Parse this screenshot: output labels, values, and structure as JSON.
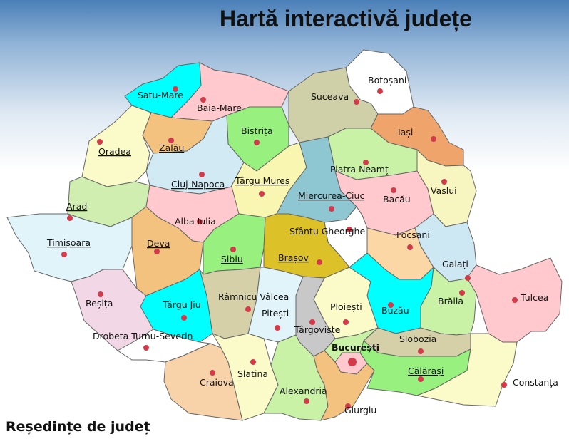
{
  "title": "Hartă interactivă județe",
  "legend": "Reședințe de județ",
  "colors": {
    "water": "#4a7fb8",
    "seat_dot": "#d33a4a"
  },
  "counties": [
    {
      "id": "satu-mare",
      "label": "Satu-Mare",
      "color": "#00ffff",
      "linked": false
    },
    {
      "id": "maramures",
      "label": "Baia-Mare",
      "color": "#ffc9cd",
      "linked": false
    },
    {
      "id": "botosani",
      "label": "Botoșani",
      "color": "#ffffff",
      "linked": false
    },
    {
      "id": "suceava",
      "label": "Suceava",
      "color": "#cfcfa8",
      "linked": false
    },
    {
      "id": "iasi",
      "label": "Iași",
      "color": "#efa46c",
      "linked": false
    },
    {
      "id": "bihor",
      "label": "Oradea",
      "color": "#fafbc8",
      "linked": true
    },
    {
      "id": "salaj",
      "label": "Zalău",
      "color": "#f4c27f",
      "linked": true
    },
    {
      "id": "bistrita",
      "label": "Bistrița",
      "color": "#98f07e",
      "linked": false
    },
    {
      "id": "neamt",
      "label": "Piatra Neamț",
      "color": "#c9f2a6",
      "linked": false
    },
    {
      "id": "cluj",
      "label": "Cluj-Napoca",
      "color": "#d1eaf4",
      "linked": true
    },
    {
      "id": "mures",
      "label": "Târgu Mureș",
      "color": "#f8f6b0",
      "linked": true
    },
    {
      "id": "harghita",
      "label": "Miercurea-Ciuc",
      "color": "#8ec6d2",
      "linked": true
    },
    {
      "id": "bacau",
      "label": "Bacău",
      "color": "#ffc9cd",
      "linked": false
    },
    {
      "id": "vaslui",
      "label": "Vaslui",
      "color": "#f8f6c0",
      "linked": false
    },
    {
      "id": "arad",
      "label": "Arad",
      "color": "#cfeeb0",
      "linked": true
    },
    {
      "id": "alba",
      "label": "Alba Iulia",
      "color": "#ffc9cd",
      "linked": false
    },
    {
      "id": "timis",
      "label": "Timișoara",
      "color": "#e0f4fa",
      "linked": true
    },
    {
      "id": "hunedoara",
      "label": "Deva",
      "color": "#f4c27f",
      "linked": true
    },
    {
      "id": "sibiu",
      "label": "Sibiu",
      "color": "#98f07e",
      "linked": true
    },
    {
      "id": "covasna",
      "label": "Sfântu Gheorghe",
      "color": "#ffffff",
      "linked": false
    },
    {
      "id": "brasov",
      "label": "Brașov",
      "color": "#dcc128",
      "linked": true
    },
    {
      "id": "vrancea",
      "label": "Focșani",
      "color": "#fbd7a6",
      "linked": false
    },
    {
      "id": "galati",
      "label": "Galați",
      "color": "#cde8f2",
      "linked": false
    },
    {
      "id": "caras",
      "label": "Reșița",
      "color": "#f2d8e6",
      "linked": false
    },
    {
      "id": "gorj",
      "label": "Târgu Jiu",
      "color": "#00ffff",
      "linked": false
    },
    {
      "id": "valcea",
      "label": "Râmnicu Vâlcea",
      "color": "#d5d0a8",
      "linked": false
    },
    {
      "id": "arges",
      "label": "Pitești",
      "color": "#e0f4fa",
      "linked": false
    },
    {
      "id": "dambovita",
      "label": "Târgoviște",
      "color": "#c8c8c8",
      "linked": false
    },
    {
      "id": "prahova",
      "label": "Ploiești",
      "color": "#fafbc8",
      "linked": false
    },
    {
      "id": "buzau",
      "label": "Buzău",
      "color": "#00ffff",
      "linked": false
    },
    {
      "id": "braila",
      "label": "Brăila",
      "color": "#c9f2a6",
      "linked": false
    },
    {
      "id": "tulcea",
      "label": "Tulcea",
      "color": "#ffc9cd",
      "linked": false
    },
    {
      "id": "mehedinti",
      "label": "Drobeta Turnu-Severin",
      "color": "#ffffff",
      "linked": false
    },
    {
      "id": "bucuresti",
      "label": "București",
      "color": "#ffc9cd",
      "linked": false
    },
    {
      "id": "ialomita",
      "label": "Slobozia",
      "color": "#d5d0a8",
      "linked": false
    },
    {
      "id": "dolj",
      "label": "Craiova",
      "color": "#f8d2a8",
      "linked": false
    },
    {
      "id": "olt",
      "label": "Slatina",
      "color": "#fafbc8",
      "linked": false
    },
    {
      "id": "teleorman",
      "label": "Alexandria",
      "color": "#c9f2a6",
      "linked": false
    },
    {
      "id": "giurgiu",
      "label": "Giurgiu",
      "color": "#f4c27f",
      "linked": false
    },
    {
      "id": "calarasi",
      "label": "Călărași",
      "color": "#98f07e",
      "linked": true
    },
    {
      "id": "constanta",
      "label": "Constanța",
      "color": "#fafbc8",
      "linked": false
    },
    {
      "id": "ilfov",
      "label": "",
      "color": "#c9f2a6",
      "linked": false
    }
  ]
}
